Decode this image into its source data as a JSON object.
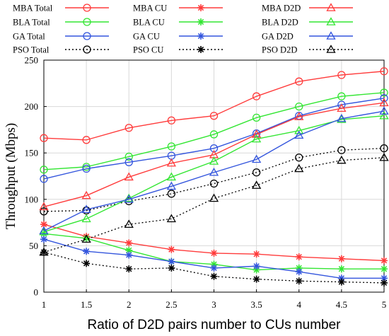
{
  "chart_data": {
    "type": "line",
    "xlabel": "Ratio of D2D pairs number to CUs number",
    "ylabel": "Throughput (Mbps)",
    "xlim": [
      1,
      5
    ],
    "ylim": [
      0,
      250
    ],
    "x_ticks": [
      "1",
      "1.5",
      "2",
      "2.5",
      "3",
      "3.5",
      "4",
      "4.5",
      "5"
    ],
    "y_ticks": [
      "0",
      "50",
      "100",
      "150",
      "200",
      "250"
    ],
    "grid": true,
    "legend_position": "top, above plot",
    "x": [
      1,
      1.5,
      2,
      2.5,
      3,
      3.5,
      4,
      4.5,
      5
    ],
    "series": [
      {
        "name": "MBA Total",
        "color": "#ff3b3b",
        "marker": "circle",
        "dash": "solid",
        "values": [
          166,
          164,
          177,
          185,
          190,
          211,
          227,
          234,
          238
        ]
      },
      {
        "name": "BLA Total",
        "color": "#33e633",
        "marker": "circle",
        "dash": "solid",
        "values": [
          132,
          135,
          146,
          157,
          170,
          188,
          200,
          211,
          215
        ]
      },
      {
        "name": "GA Total",
        "color": "#3355dd",
        "marker": "circle",
        "dash": "solid",
        "values": [
          122,
          133,
          140,
          147,
          155,
          171,
          190,
          202,
          209
        ]
      },
      {
        "name": "PSO Total",
        "color": "#000000",
        "marker": "circle",
        "dash": "dotted",
        "values": [
          87,
          88,
          98,
          106,
          117,
          129,
          145,
          153,
          155
        ]
      },
      {
        "name": "MBA CU",
        "color": "#ff3b3b",
        "marker": "asterisk",
        "dash": "solid",
        "values": [
          73,
          60,
          53,
          46,
          42,
          41,
          38,
          36,
          34
        ]
      },
      {
        "name": "BLA CU",
        "color": "#33e633",
        "marker": "asterisk",
        "dash": "solid",
        "values": [
          63,
          58,
          45,
          33,
          30,
          24,
          26,
          25,
          25
        ]
      },
      {
        "name": "GA CU",
        "color": "#3355dd",
        "marker": "asterisk",
        "dash": "solid",
        "values": [
          57,
          44,
          40,
          33,
          26,
          28,
          22,
          15,
          15
        ]
      },
      {
        "name": "PSO CU",
        "color": "#000000",
        "marker": "asterisk",
        "dash": "dotted",
        "values": [
          43,
          31,
          25,
          26,
          17,
          14,
          12,
          11,
          10
        ]
      },
      {
        "name": "MBA D2D",
        "color": "#ff3b3b",
        "marker": "triangle",
        "dash": "solid",
        "values": [
          92,
          104,
          124,
          139,
          148,
          170,
          189,
          198,
          204
        ]
      },
      {
        "name": "BLA D2D",
        "color": "#33e633",
        "marker": "triangle",
        "dash": "solid",
        "values": [
          65,
          79,
          101,
          124,
          141,
          165,
          174,
          186,
          190
        ]
      },
      {
        "name": "GA D2D",
        "color": "#3355dd",
        "marker": "triangle",
        "dash": "solid",
        "values": [
          66,
          89,
          100,
          114,
          129,
          143,
          169,
          187,
          195
        ]
      },
      {
        "name": "PSO D2D",
        "color": "#000000",
        "marker": "triangle",
        "dash": "dotted",
        "values": [
          43,
          57,
          73,
          79,
          101,
          115,
          133,
          142,
          145
        ]
      }
    ]
  }
}
